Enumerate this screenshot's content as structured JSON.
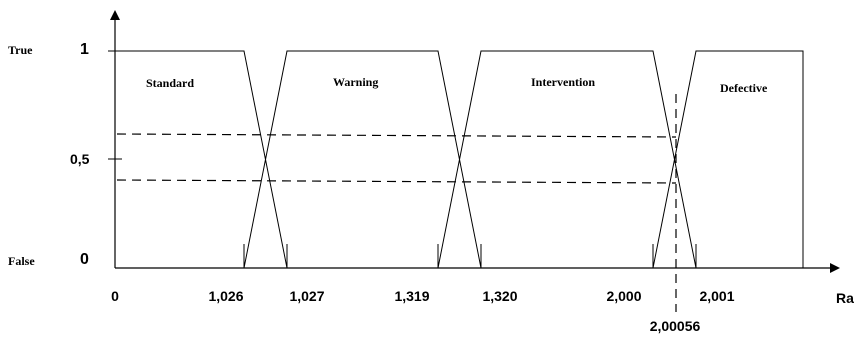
{
  "chart_data": {
    "type": "line",
    "y_labels": {
      "true_word": "True",
      "false_word": "False",
      "one": "1",
      "half": "0,5",
      "zero": "0"
    },
    "x_ticks": [
      "0",
      "1,026",
      "1,027",
      "1,319",
      "1,320",
      "2,000",
      "2,001"
    ],
    "x_axis_label": "Ra",
    "marker": {
      "label": "2,00056",
      "value": 2.00056
    },
    "series": [
      {
        "name": "Standard",
        "points": [
          [
            0,
            1
          ],
          [
            1.026,
            1
          ],
          [
            1.027,
            0
          ]
        ]
      },
      {
        "name": "Warning",
        "points": [
          [
            1.026,
            0
          ],
          [
            1.027,
            1
          ],
          [
            1.319,
            1
          ],
          [
            1.32,
            0
          ]
        ]
      },
      {
        "name": "Intervention",
        "points": [
          [
            1.319,
            0
          ],
          [
            1.32,
            1
          ],
          [
            2.0,
            1
          ],
          [
            2.001,
            0
          ]
        ]
      },
      {
        "name": "Defective",
        "points": [
          [
            2.0,
            0
          ],
          [
            2.001,
            1
          ]
        ]
      }
    ],
    "dashed_levels": [
      0.6,
      0.4
    ],
    "ylim": [
      0,
      1
    ],
    "grid": false
  }
}
